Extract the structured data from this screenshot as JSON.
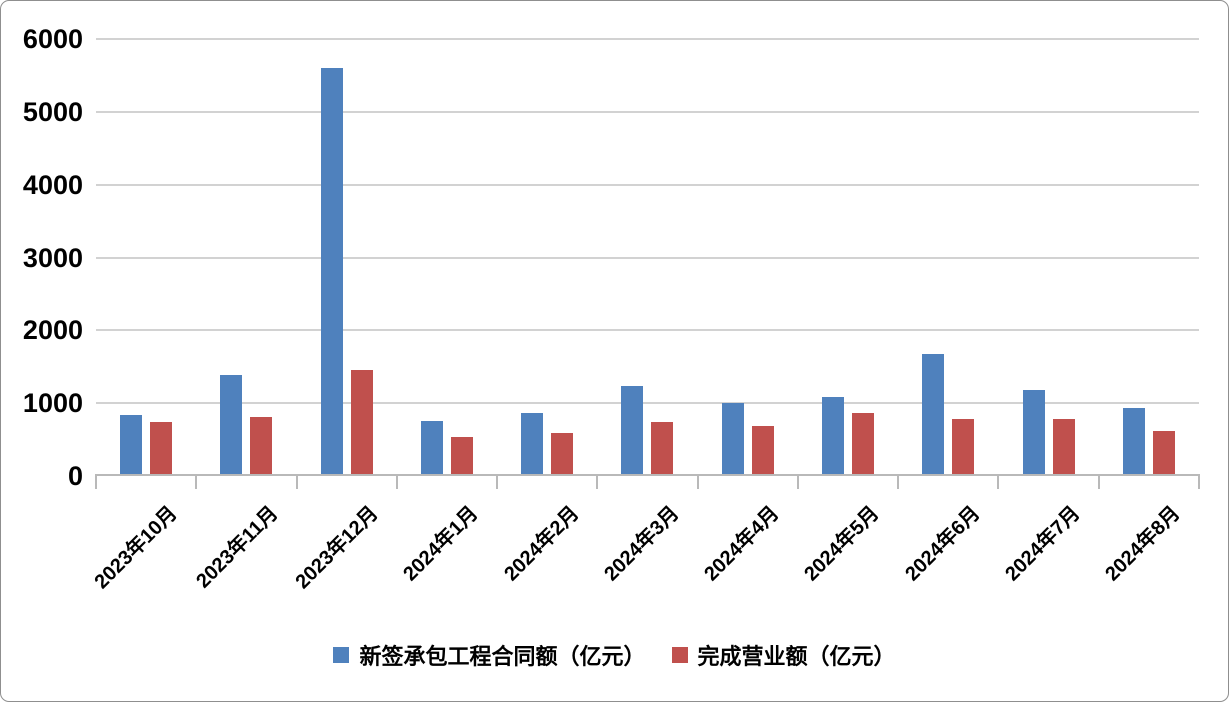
{
  "chart_data": {
    "type": "bar",
    "categories": [
      "2023年10月",
      "2023年11月",
      "2023年12月",
      "2024年1月",
      "2024年2月",
      "2024年3月",
      "2024年4月",
      "2024年5月",
      "2024年6月",
      "2024年7月",
      "2024年8月"
    ],
    "series": [
      {
        "name": "新签承包工程合同额（亿元）",
        "color": "#4F81BD",
        "values": [
          840,
          1390,
          5600,
          760,
          870,
          1230,
          1000,
          1080,
          1680,
          1180,
          940
        ]
      },
      {
        "name": "完成营业额（亿元）",
        "color": "#C0504D",
        "values": [
          740,
          810,
          1450,
          530,
          590,
          740,
          680,
          870,
          780,
          780,
          620
        ]
      }
    ],
    "title": "",
    "xlabel": "",
    "ylabel": "",
    "ylim": [
      0,
      6000
    ],
    "yticks": [
      0,
      1000,
      2000,
      3000,
      4000,
      5000,
      6000
    ],
    "grid": true,
    "legend_position": "bottom",
    "x_label_rotation_deg": -45
  },
  "colors": {
    "background": "#FFFFFF",
    "gridline": "#D2D2D2",
    "axis": "#B9B9B9",
    "text": "#000000",
    "frame_border": "#8F8F8F",
    "series_blue": "#4F81BD",
    "series_red": "#C0504D"
  }
}
